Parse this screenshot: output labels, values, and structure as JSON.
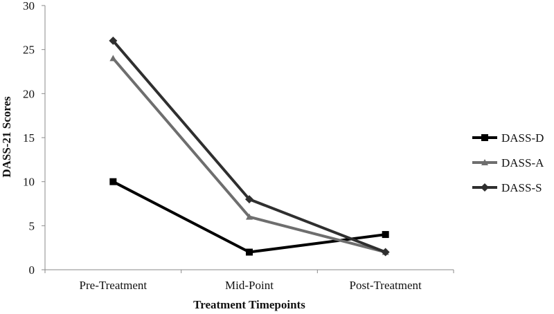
{
  "chart_data": {
    "type": "line",
    "title": "",
    "xlabel": "Treatment Timepoints",
    "ylabel": "DASS-21 Scores",
    "ylim": [
      0,
      30
    ],
    "yticks": [
      0,
      5,
      10,
      15,
      20,
      25,
      30
    ],
    "categories": [
      "Pre-Treatment",
      "Mid-Point",
      "Post-Treatment"
    ],
    "grid": false,
    "legend_position": "right",
    "series": [
      {
        "name": "DASS-D",
        "values": [
          10,
          2,
          4
        ],
        "color": "#000000",
        "marker": "square"
      },
      {
        "name": "DASS-A",
        "values": [
          24,
          6,
          2
        ],
        "color": "#6e6e6e",
        "marker": "triangle"
      },
      {
        "name": "DASS-S",
        "values": [
          26,
          8,
          2
        ],
        "color": "#2f2f2f",
        "marker": "diamond"
      }
    ]
  }
}
